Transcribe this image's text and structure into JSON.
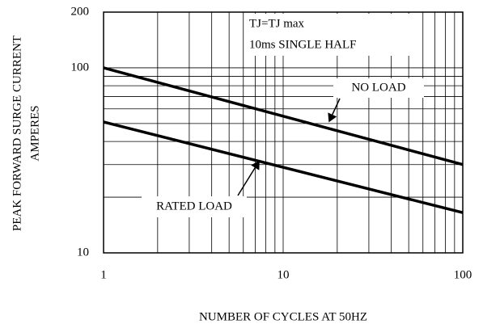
{
  "chart_data": {
    "type": "line",
    "xlabel": "NUMBER OF CYCLES AT 50HZ",
    "ylabel": [
      "PEAK FORWARD SURGE CURRENT",
      "AMPERES"
    ],
    "annotations": [
      "TJ=TJ  max",
      "10ms SINGLE HALF"
    ],
    "x": [
      1,
      100
    ],
    "series": [
      {
        "name": "NO LOAD",
        "color": "#000000",
        "values": [
          100,
          30
        ]
      },
      {
        "name": "RATED LOAD",
        "color": "#000000",
        "values": [
          51,
          16.5
        ]
      }
    ],
    "xlim": [
      1,
      100
    ],
    "ylim": [
      10,
      200
    ],
    "xticks": [
      1,
      10,
      100
    ],
    "yticks": [
      10,
      100,
      200
    ],
    "xscale": "log",
    "yscale": "log",
    "grid": true
  }
}
